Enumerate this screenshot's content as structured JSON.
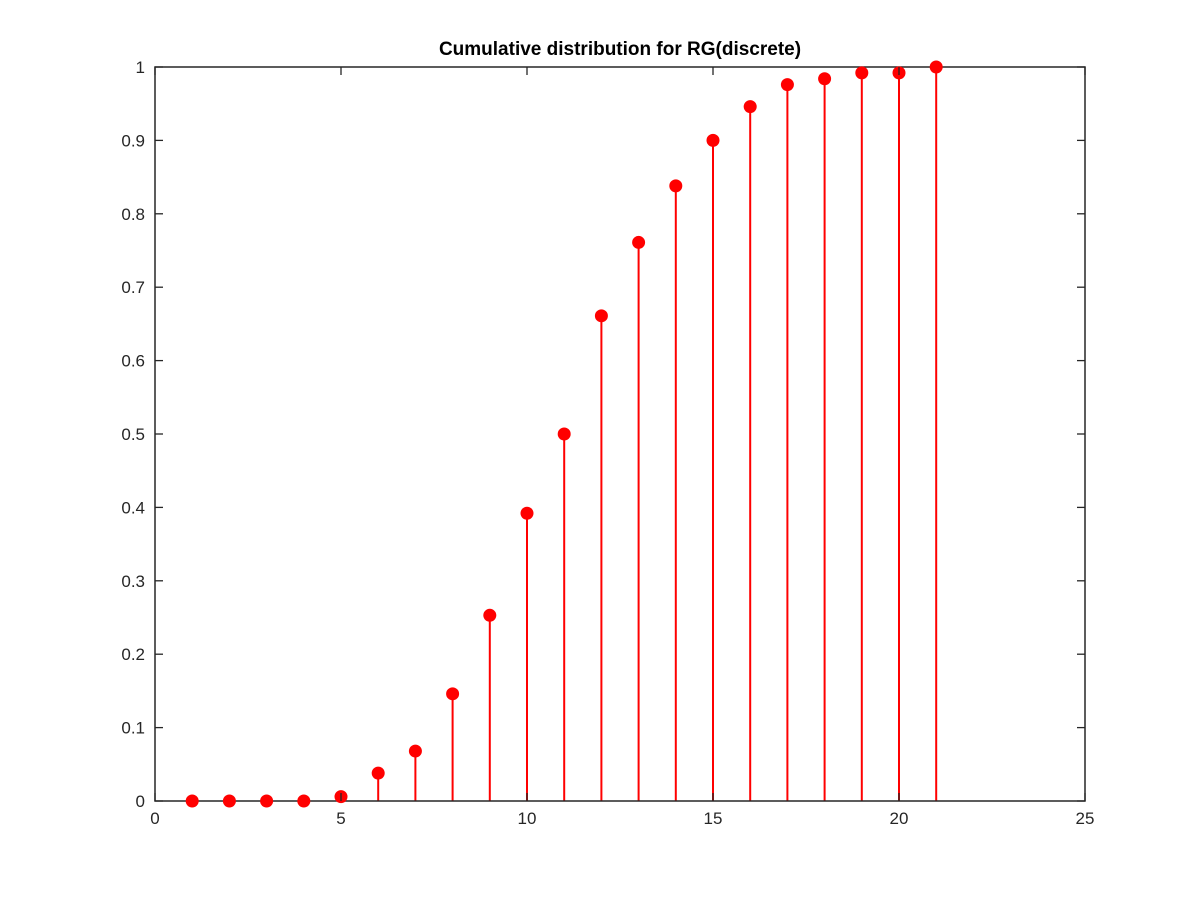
{
  "chart_data": {
    "type": "stem",
    "title": "Cumulative distribution for RG(discrete)",
    "xlabel": "",
    "ylabel": "",
    "xlim": [
      0,
      25
    ],
    "ylim": [
      0,
      1
    ],
    "xticks": [
      "0",
      "5",
      "10",
      "15",
      "20",
      "25"
    ],
    "yticks": [
      "0",
      "0.1",
      "0.2",
      "0.3",
      "0.4",
      "0.5",
      "0.6",
      "0.7",
      "0.8",
      "0.9",
      "1"
    ],
    "grid": false,
    "color": "#ff0000",
    "x": [
      1,
      2,
      3,
      4,
      5,
      6,
      7,
      8,
      9,
      10,
      11,
      12,
      13,
      14,
      15,
      16,
      17,
      18,
      19,
      20,
      21
    ],
    "y": [
      0.0,
      0.0,
      0.0,
      0.0,
      0.006,
      0.038,
      0.068,
      0.146,
      0.253,
      0.392,
      0.5,
      0.661,
      0.761,
      0.838,
      0.9,
      0.946,
      0.976,
      0.984,
      0.992,
      0.992,
      1.0
    ]
  }
}
